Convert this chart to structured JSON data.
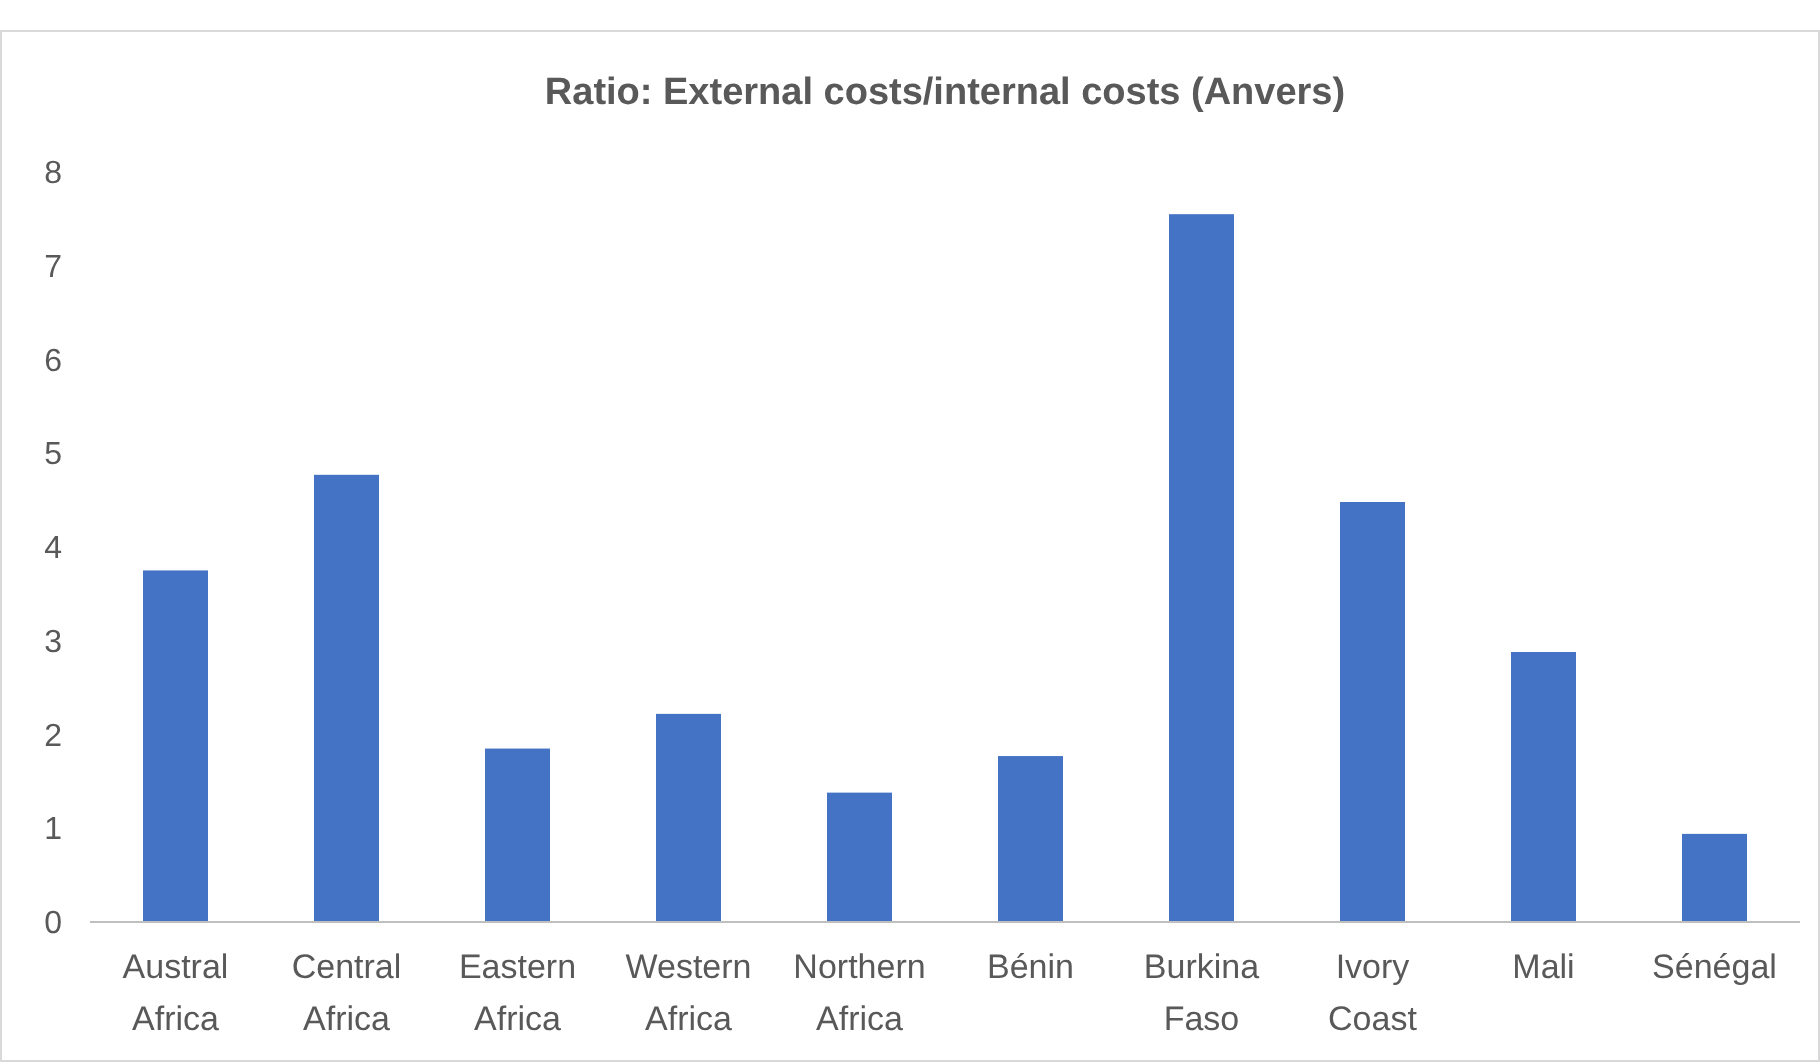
{
  "chart_data": {
    "type": "bar",
    "title": "Ratio: External costs/internal costs (Anvers)",
    "categories": [
      "Austral Africa",
      "Central Africa",
      "Eastern Africa",
      "Western Africa",
      "Northern Africa",
      "Bénin",
      "Burkina Faso",
      "Ivory Coast",
      "Mali",
      "Sénégal"
    ],
    "values": [
      3.75,
      4.77,
      1.85,
      2.22,
      1.38,
      1.77,
      7.55,
      4.48,
      2.88,
      0.94
    ],
    "color": "#4472c4",
    "ylim": [
      0,
      8
    ],
    "yticks": [
      0,
      1,
      2,
      3,
      4,
      5,
      6,
      7,
      8
    ],
    "grid": false
  }
}
